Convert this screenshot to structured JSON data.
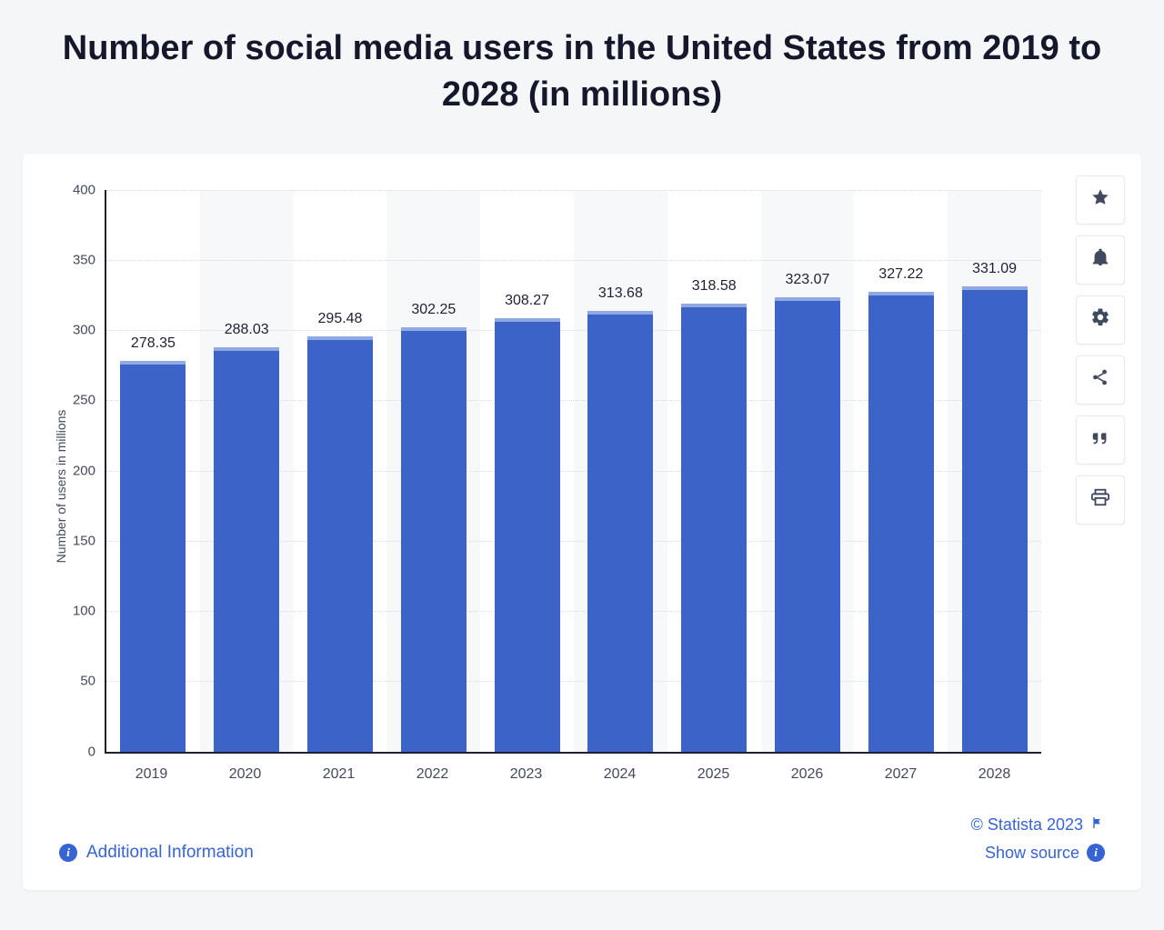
{
  "title": "Number of social media users in the United States from 2019 to 2028 (in millions)",
  "chart": {
    "type": "bar",
    "y_axis_label": "Number of users in millions",
    "categories": [
      "2019",
      "2020",
      "2021",
      "2022",
      "2023",
      "2024",
      "2025",
      "2026",
      "2027",
      "2028"
    ],
    "values": [
      278.35,
      288.03,
      295.48,
      302.25,
      308.27,
      313.68,
      318.58,
      323.07,
      327.22,
      331.09
    ],
    "value_labels": [
      "278.35",
      "288.03",
      "295.48",
      "302.25",
      "308.27",
      "313.68",
      "318.58",
      "323.07",
      "327.22",
      "331.09"
    ],
    "ylim": [
      0,
      400
    ],
    "ytick_step": 50,
    "y_ticks": [
      "0",
      "50",
      "100",
      "150",
      "200",
      "250",
      "300",
      "350",
      "400"
    ],
    "bar_color": "#3c64c8",
    "bar_top_color": "#90a9e2",
    "bar_width_ratio": 0.7,
    "bg_band_color": "#f7f8fa",
    "grid_color": "#d9dbe2",
    "axis_color": "#1e2133",
    "background_color": "#ffffff",
    "tick_fontsize": 15,
    "label_fontsize": 16,
    "value_label_fontsize": 16,
    "axis_label_fontsize": 14
  },
  "toolbar": {
    "star": "star-icon",
    "bell": "bell-icon",
    "gear": "gear-icon",
    "share": "share-icon",
    "quote": "quote-icon",
    "print": "print-icon"
  },
  "footer": {
    "additional_info_label": "Additional Information",
    "copyright": "© Statista 2023",
    "show_source_label": "Show source"
  },
  "colors": {
    "link": "#3763d4",
    "page_bg": "#f5f6f8",
    "title_text": "#15182b",
    "body_text": "#444a5e"
  }
}
